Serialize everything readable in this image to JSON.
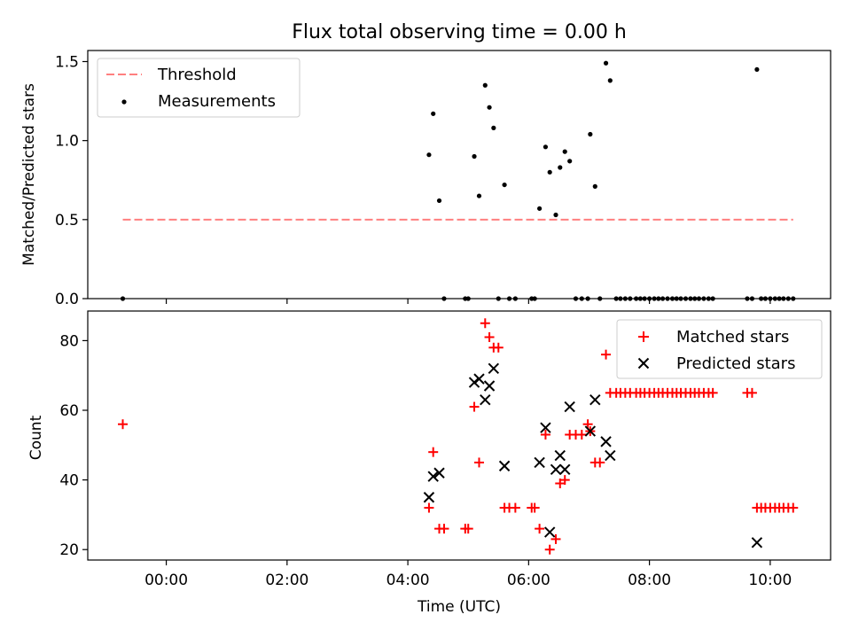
{
  "chart_data": [
    {
      "type": "scatter",
      "title": "Flux total observing time = 0.00 h",
      "xlabel": "",
      "ylabel": "Matched/Predicted stars",
      "x_unit": "hours (UTC)",
      "xlim": [
        -1.3,
        11.0
      ],
      "ylim": [
        0,
        1.57
      ],
      "yticks": [
        "0.0",
        "0.5",
        "1.0",
        "1.5"
      ],
      "legend": "top-left",
      "series": [
        {
          "name": "Threshold",
          "style": "dashed-line",
          "color": "#ff7f7f",
          "x": [
            -0.72,
            10.38
          ],
          "y": [
            0.5,
            0.5
          ]
        },
        {
          "name": "Measurements",
          "style": "dot",
          "color": "#000000",
          "x": [
            -0.72,
            4.35,
            4.42,
            4.52,
            4.6,
            4.95,
            5.0,
            5.1,
            5.18,
            5.28,
            5.35,
            5.42,
            5.5,
            5.6,
            5.68,
            5.78,
            6.05,
            6.1,
            6.18,
            6.28,
            6.35,
            6.45,
            6.52,
            6.6,
            6.68,
            6.78,
            6.88,
            6.98,
            7.02,
            7.1,
            7.18,
            7.28,
            7.35,
            7.45,
            7.52,
            7.6,
            7.68,
            7.78,
            7.85,
            7.92,
            8.0,
            8.08,
            8.15,
            8.22,
            8.3,
            8.38,
            8.45,
            8.52,
            8.6,
            8.68,
            8.75,
            8.82,
            8.9,
            8.98,
            9.05,
            9.62,
            9.7,
            9.78,
            9.85,
            9.92,
            10.0,
            10.08,
            10.15,
            10.22,
            10.3,
            10.38
          ],
          "y": [
            0,
            0.91,
            1.17,
            0.62,
            0,
            0,
            0,
            0.9,
            0.65,
            1.35,
            1.21,
            1.08,
            0,
            0.72,
            0,
            0,
            0,
            0,
            0.57,
            0.96,
            0.8,
            0.53,
            0.83,
            0.93,
            0.87,
            0,
            0,
            0,
            1.04,
            0.71,
            0,
            1.49,
            1.38,
            0,
            0,
            0,
            0,
            0,
            0,
            0,
            0,
            0,
            0,
            0,
            0,
            0,
            0,
            0,
            0,
            0,
            0,
            0,
            0,
            0,
            0,
            0,
            0,
            1.45,
            0,
            0,
            0,
            0,
            0,
            0,
            0,
            0
          ]
        }
      ]
    },
    {
      "type": "scatter",
      "title": "",
      "xlabel": "Time (UTC)",
      "ylabel": "Count",
      "x_unit": "hours (UTC)",
      "xlim": [
        -1.3,
        11.0
      ],
      "ylim": [
        17,
        88.5
      ],
      "xticks": [
        "00:00",
        "02:00",
        "04:00",
        "06:00",
        "08:00",
        "10:00"
      ],
      "yticks": [
        "20",
        "40",
        "60",
        "80"
      ],
      "legend": "top-right",
      "series": [
        {
          "name": "Matched stars",
          "marker": "+",
          "color": "#ff0000",
          "x": [
            -0.72,
            4.35,
            4.42,
            4.52,
            4.6,
            4.95,
            5.0,
            5.1,
            5.18,
            5.28,
            5.35,
            5.42,
            5.5,
            5.6,
            5.68,
            5.78,
            6.05,
            6.1,
            6.18,
            6.28,
            6.35,
            6.45,
            6.52,
            6.6,
            6.68,
            6.78,
            6.88,
            6.98,
            7.02,
            7.1,
            7.18,
            7.28,
            7.35,
            7.45,
            7.52,
            7.6,
            7.68,
            7.78,
            7.85,
            7.92,
            8.0,
            8.08,
            8.15,
            8.22,
            8.3,
            8.38,
            8.45,
            8.52,
            8.6,
            8.68,
            8.75,
            8.82,
            8.9,
            8.98,
            9.05,
            9.62,
            9.7,
            9.78,
            9.85,
            9.92,
            10.0,
            10.08,
            10.15,
            10.22,
            10.3,
            10.38
          ],
          "y": [
            56,
            32,
            48,
            26,
            26,
            26,
            26,
            61,
            45,
            85,
            81,
            78,
            78,
            32,
            32,
            32,
            32,
            32,
            26,
            53,
            20,
            23,
            39,
            40,
            53,
            53,
            53,
            56,
            54,
            45,
            45,
            76,
            65,
            65,
            65,
            65,
            65,
            65,
            65,
            65,
            65,
            65,
            65,
            65,
            65,
            65,
            65,
            65,
            65,
            65,
            65,
            65,
            65,
            65,
            65,
            65,
            65,
            32,
            32,
            32,
            32,
            32,
            32,
            32,
            32,
            32
          ]
        },
        {
          "name": "Predicted stars",
          "marker": "x",
          "color": "#000000",
          "x": [
            4.35,
            4.42,
            4.52,
            5.1,
            5.18,
            5.28,
            5.35,
            5.42,
            5.6,
            6.18,
            6.28,
            6.35,
            6.45,
            6.52,
            6.6,
            6.68,
            7.02,
            7.1,
            7.28,
            7.35,
            9.78
          ],
          "y": [
            35,
            41,
            42,
            68,
            69,
            63,
            67,
            72,
            44,
            45,
            55,
            25,
            43,
            47,
            43,
            61,
            54,
            63,
            51,
            47,
            22
          ]
        }
      ]
    }
  ]
}
